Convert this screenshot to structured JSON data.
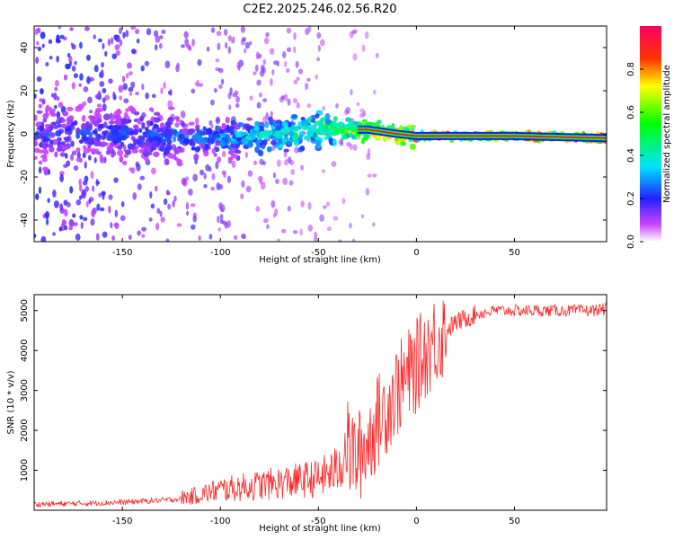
{
  "chart_data": [
    {
      "type": "heatmap",
      "title": "C2E2.2025.246.02.56.R20",
      "xlabel": "Height of straight line (km)",
      "ylabel": "Frequency (Hz)",
      "xlim": [
        -195,
        97
      ],
      "ylim": [
        -50,
        50
      ],
      "xticks": [
        -150,
        -100,
        -50,
        0,
        50
      ],
      "yticks": [
        -40,
        -20,
        0,
        20,
        40
      ],
      "colorbar": {
        "label": "Normalized spectral amplitude",
        "range": [
          0.0,
          1.0
        ],
        "ticks": [
          "0.0",
          "0.2",
          "0.4",
          "0.6",
          "0.8"
        ],
        "tick_values": [
          0.0,
          0.2,
          0.4,
          0.6,
          0.8
        ]
      },
      "ridge": {
        "description": "dominant frequency line",
        "x": [
          -195,
          -150,
          -120,
          -100,
          -80,
          -60,
          -40,
          -25,
          -10,
          0,
          10,
          50,
          97
        ],
        "frequency": [
          0,
          0,
          -2,
          -2,
          -1,
          0,
          2,
          2,
          0,
          -1,
          -1,
          -1,
          -2
        ],
        "amplitude": [
          0.25,
          0.25,
          0.3,
          0.35,
          0.45,
          0.5,
          0.6,
          0.8,
          0.85,
          0.9,
          0.95,
          0.98,
          0.98
        ]
      }
    },
    {
      "type": "line",
      "xlabel": "Height of straight line (km)",
      "ylabel": "SNR (10 * v/v)",
      "xlim": [
        -195,
        97
      ],
      "ylim": [
        0,
        5400
      ],
      "xticks": [
        -150,
        -100,
        -50,
        0,
        50
      ],
      "yticks": [
        1000,
        2000,
        3000,
        4000,
        5000
      ],
      "series": [
        {
          "name": "SNR",
          "color": "#ff0000",
          "x": [
            -195,
            -170,
            -150,
            -130,
            -115,
            -100,
            -90,
            -80,
            -70,
            -60,
            -50,
            -40,
            -35,
            -30,
            -25,
            -20,
            -15,
            -10,
            -5,
            0,
            5,
            10,
            15,
            20,
            25,
            30,
            35,
            40,
            50,
            60,
            70,
            80,
            90,
            97
          ],
          "y": [
            150,
            170,
            200,
            250,
            300,
            450,
            500,
            550,
            600,
            650,
            700,
            900,
            1500,
            1300,
            1700,
            2200,
            2600,
            3000,
            3300,
            3600,
            4000,
            4300,
            4500,
            4700,
            4800,
            4900,
            4950,
            5000,
            5000,
            5000,
            5000,
            5000,
            5000,
            5050
          ]
        }
      ]
    }
  ]
}
